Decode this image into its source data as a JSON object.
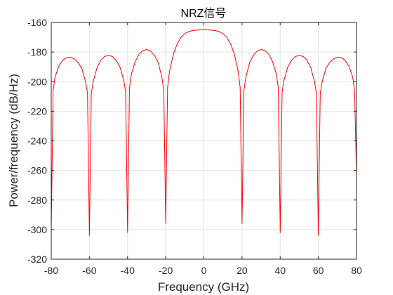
{
  "chart_data": {
    "type": "line",
    "title": "NRZ信号",
    "xlabel": "Frequency (GHz)",
    "ylabel": "Power/frequency (dB/Hz)",
    "xlim": [
      -80,
      80
    ],
    "ylim": [
      -320,
      -160
    ],
    "xticks": [
      -80,
      -60,
      -40,
      -20,
      0,
      20,
      40,
      60,
      80
    ],
    "yticks": [
      -320,
      -300,
      -280,
      -260,
      -240,
      -220,
      -200,
      -180,
      -160
    ],
    "xtick_labels": [
      "-80",
      "-60",
      "-40",
      "-20",
      "0",
      "20",
      "40",
      "60",
      "80"
    ],
    "ytick_labels": [
      "-320",
      "-300",
      "-280",
      "-260",
      "-240",
      "-220",
      "-200",
      "-180",
      "-160"
    ],
    "grid": true,
    "legend": "none",
    "series": [
      {
        "color": "#ff0000",
        "x": [
          -80,
          -79,
          -78,
          -76,
          -74,
          -72,
          -70,
          -68,
          -66,
          -64,
          -62,
          -61,
          -60,
          -59,
          -58,
          -56,
          -54,
          -52,
          -50,
          -48,
          -46,
          -44,
          -42,
          -41,
          -40,
          -39,
          -38,
          -36,
          -34,
          -32,
          -30,
          -28,
          -26,
          -24,
          -22,
          -21,
          -20,
          -19,
          -18,
          -16,
          -14,
          -12,
          -10,
          -8,
          -6,
          -4,
          -2,
          0,
          2,
          4,
          6,
          8,
          10,
          12,
          14,
          16,
          18,
          19,
          20,
          21,
          22,
          24,
          26,
          28,
          30,
          32,
          34,
          36,
          38,
          39,
          40,
          41,
          42,
          44,
          46,
          48,
          50,
          52,
          54,
          56,
          58,
          59,
          60,
          61,
          62,
          64,
          66,
          68,
          70,
          72,
          74,
          76,
          78,
          79,
          80
        ],
        "y": [
          -300,
          -206,
          -197,
          -189.5,
          -185.5,
          -183.8,
          -183.5,
          -184.5,
          -187,
          -191,
          -200,
          -208,
          -304,
          -208,
          -200,
          -190.5,
          -185.5,
          -183,
          -182.3,
          -183,
          -185.5,
          -190,
          -199,
          -207,
          -302,
          -204,
          -195,
          -186.5,
          -181.5,
          -179,
          -178.3,
          -179.3,
          -182,
          -187,
          -197,
          -206,
          -296,
          -204,
          -193,
          -181.5,
          -174.5,
          -170,
          -167.5,
          -166.2,
          -165.5,
          -165.2,
          -165,
          -165,
          -165,
          -165.2,
          -165.5,
          -166.2,
          -167.5,
          -170,
          -174.5,
          -181.5,
          -193,
          -204,
          -296,
          -206,
          -197,
          -187,
          -182,
          -179.3,
          -178.3,
          -179,
          -181.5,
          -186.5,
          -195,
          -204,
          -302,
          -207,
          -199,
          -190,
          -185.5,
          -183,
          -182.3,
          -183,
          -185.5,
          -190.5,
          -200,
          -208,
          -304,
          -208,
          -200,
          -191,
          -187,
          -184.5,
          -183.5,
          -183.8,
          -185.5,
          -189.5,
          -197,
          -206,
          -264
        ]
      }
    ]
  }
}
